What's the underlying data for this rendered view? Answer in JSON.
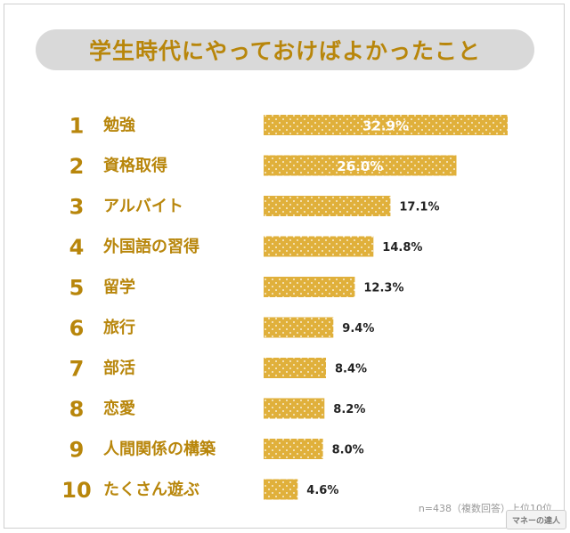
{
  "header": {
    "title": "学生時代にやっておけばよかったこと"
  },
  "footnote": "n=438（複数回答）上位10位",
  "logo_text": "マネーの達人",
  "colors": {
    "bar": "#e0b03b",
    "dots": "#ffffff",
    "accent": "#b8860b",
    "pill": "#d9d9d9"
  },
  "chart_data": {
    "type": "bar",
    "orientation": "horizontal",
    "title": "学生時代にやっておけばよかったこと",
    "ranks": [
      "1",
      "2",
      "3",
      "4",
      "5",
      "6",
      "7",
      "8",
      "9",
      "10"
    ],
    "categories": [
      "勉強",
      "資格取得",
      "アルバイト",
      "外国語の習得",
      "留学",
      "旅行",
      "部活",
      "恋愛",
      "人間関係の構築",
      "たくさん遊ぶ"
    ],
    "values": [
      32.9,
      26.0,
      17.1,
      14.8,
      12.3,
      9.4,
      8.4,
      8.2,
      8.0,
      4.6
    ],
    "value_labels": [
      "32.9%",
      "26.0%",
      "17.1%",
      "14.8%",
      "12.3%",
      "9.4%",
      "8.4%",
      "8.2%",
      "8.0%",
      "4.6%"
    ],
    "xlim": [
      0,
      32.9
    ],
    "grid": false,
    "legend": "none"
  }
}
